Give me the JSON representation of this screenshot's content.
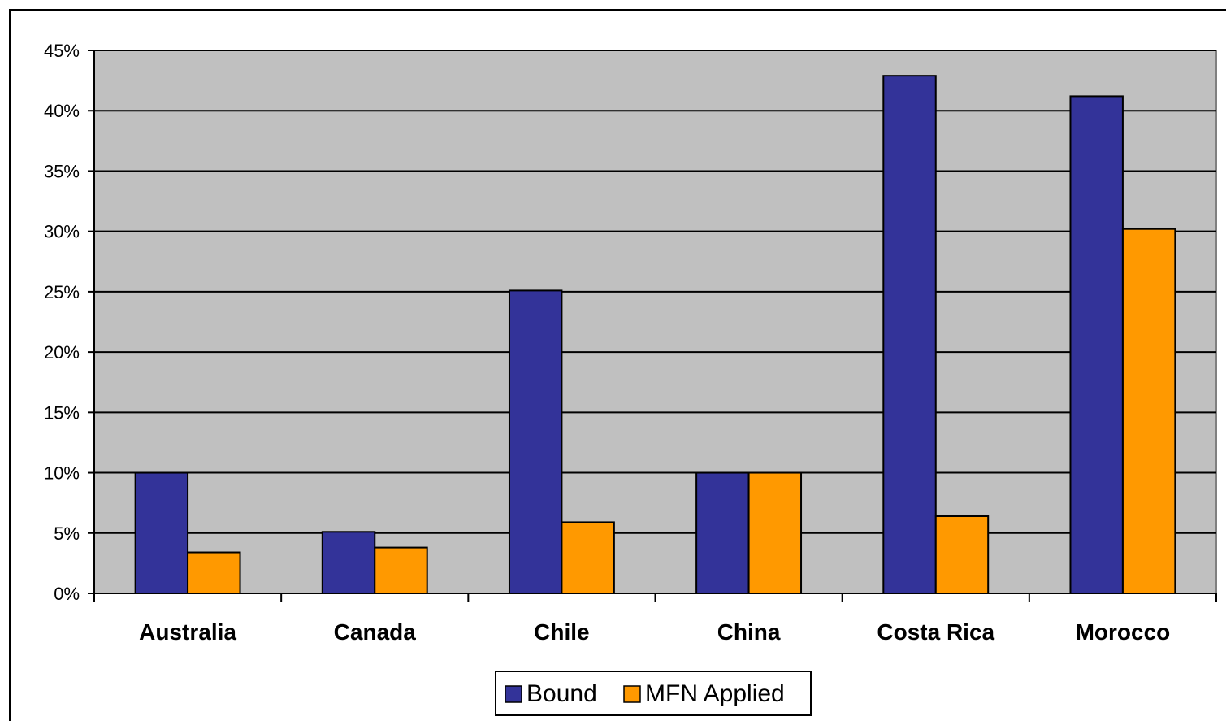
{
  "chart_data": {
    "type": "bar",
    "title": "",
    "xlabel": "",
    "ylabel": "",
    "categories": [
      "Australia",
      "Canada",
      "Chile",
      "China",
      "Costa Rica",
      "Morocco"
    ],
    "series": [
      {
        "name": "Bound",
        "color": "#333399",
        "values": [
          10,
          5.1,
          25.1,
          10,
          42.9,
          41.2
        ]
      },
      {
        "name": "MFN Applied",
        "color": "#FF9900",
        "values": [
          3.4,
          3.8,
          5.9,
          10,
          6.4,
          30.2
        ]
      }
    ],
    "ylim": [
      0,
      45
    ],
    "y_ticks": [
      "0%",
      "5%",
      "10%",
      "15%",
      "20%",
      "25%",
      "30%",
      "35%",
      "40%",
      "45%"
    ],
    "y_tick_values": [
      0,
      5,
      10,
      15,
      20,
      25,
      30,
      35,
      40,
      45
    ],
    "grid": true,
    "legend_position": "bottom",
    "plot_background": "#C0C0C0"
  }
}
